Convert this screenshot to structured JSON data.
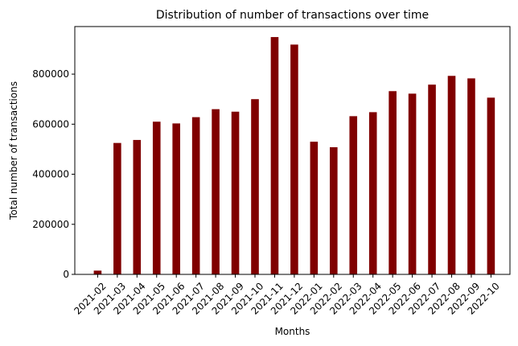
{
  "chart_data": {
    "type": "bar",
    "title": "Distribution of number of transactions over time",
    "xlabel": "Months",
    "ylabel": "Total number of transactions",
    "categories": [
      "2021-02",
      "2021-03",
      "2021-04",
      "2021-05",
      "2021-06",
      "2021-07",
      "2021-08",
      "2021-09",
      "2021-10",
      "2021-11",
      "2021-12",
      "2022-01",
      "2022-02",
      "2022-03",
      "2022-04",
      "2022-05",
      "2022-06",
      "2022-07",
      "2022-08",
      "2022-09",
      "2022-10"
    ],
    "values": [
      15000,
      525000,
      537000,
      610000,
      603000,
      628000,
      660000,
      650000,
      700000,
      948000,
      918000,
      530000,
      508000,
      632000,
      648000,
      732000,
      722000,
      758000,
      793000,
      783000,
      706000
    ],
    "ylim": [
      0,
      990000
    ],
    "yticks": [
      0,
      200000,
      400000,
      600000,
      800000
    ],
    "ytick_labels": [
      "0",
      "200000",
      "400000",
      "600000",
      "800000"
    ],
    "bar_color": "#800000",
    "grid": false
  }
}
